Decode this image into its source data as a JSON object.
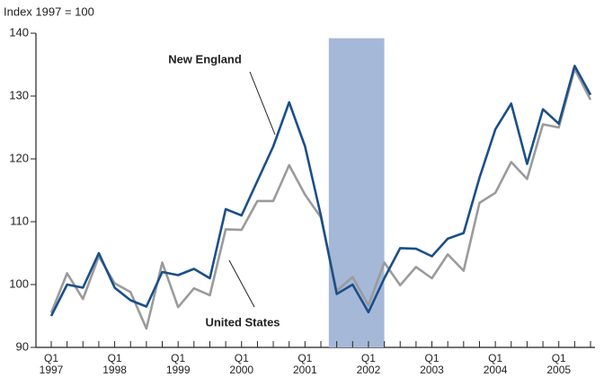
{
  "chart_data": {
    "type": "line",
    "y_axis_label": "Index 1997 = 100",
    "categories": [
      "Q1\n1997",
      null,
      null,
      null,
      "Q1\n1998",
      null,
      null,
      null,
      "Q1\n1999",
      null,
      null,
      null,
      "Q1\n2000",
      null,
      null,
      null,
      "Q1\n2001",
      null,
      null,
      null,
      "Q1\n2002",
      null,
      null,
      null,
      "Q1\n2003",
      null,
      null,
      null,
      "Q1\n2004",
      null,
      null,
      null,
      "Q1\n2005",
      null,
      null
    ],
    "series": [
      {
        "name": "New England",
        "color": "#1a4f8a",
        "values": [
          95,
          100,
          99.5,
          105,
          99.5,
          97.5,
          96.5,
          102,
          101.5,
          102.5,
          101,
          112,
          111,
          116.5,
          122,
          129,
          122,
          111,
          98.5,
          100,
          95.6,
          101,
          105.8,
          105.7,
          104.5,
          107.3,
          108.2,
          117,
          124.7,
          128.8,
          119.2,
          127.9,
          125.6,
          134.8,
          130.2
        ]
      },
      {
        "name": "United States",
        "color": "#9b9b9b",
        "values": [
          95.5,
          101.8,
          97.7,
          104.5,
          100.2,
          98.8,
          93,
          103.5,
          96.4,
          99.4,
          98.3,
          108.8,
          108.7,
          113.3,
          113.3,
          119,
          114.3,
          110.7,
          99,
          101.2,
          96.7,
          103.5,
          99.9,
          102.8,
          101,
          104.8,
          102.2,
          113,
          114.6,
          119.5,
          116.8,
          125.5,
          125,
          134.3,
          129.4
        ]
      }
    ],
    "shaded_region": {
      "x": [
        17.5,
        21
      ],
      "ymax": 139.2,
      "color": "#a6b8d8"
    },
    "ylim": [
      90,
      140
    ],
    "yticks": [
      90,
      100,
      110,
      120,
      130,
      140
    ]
  }
}
